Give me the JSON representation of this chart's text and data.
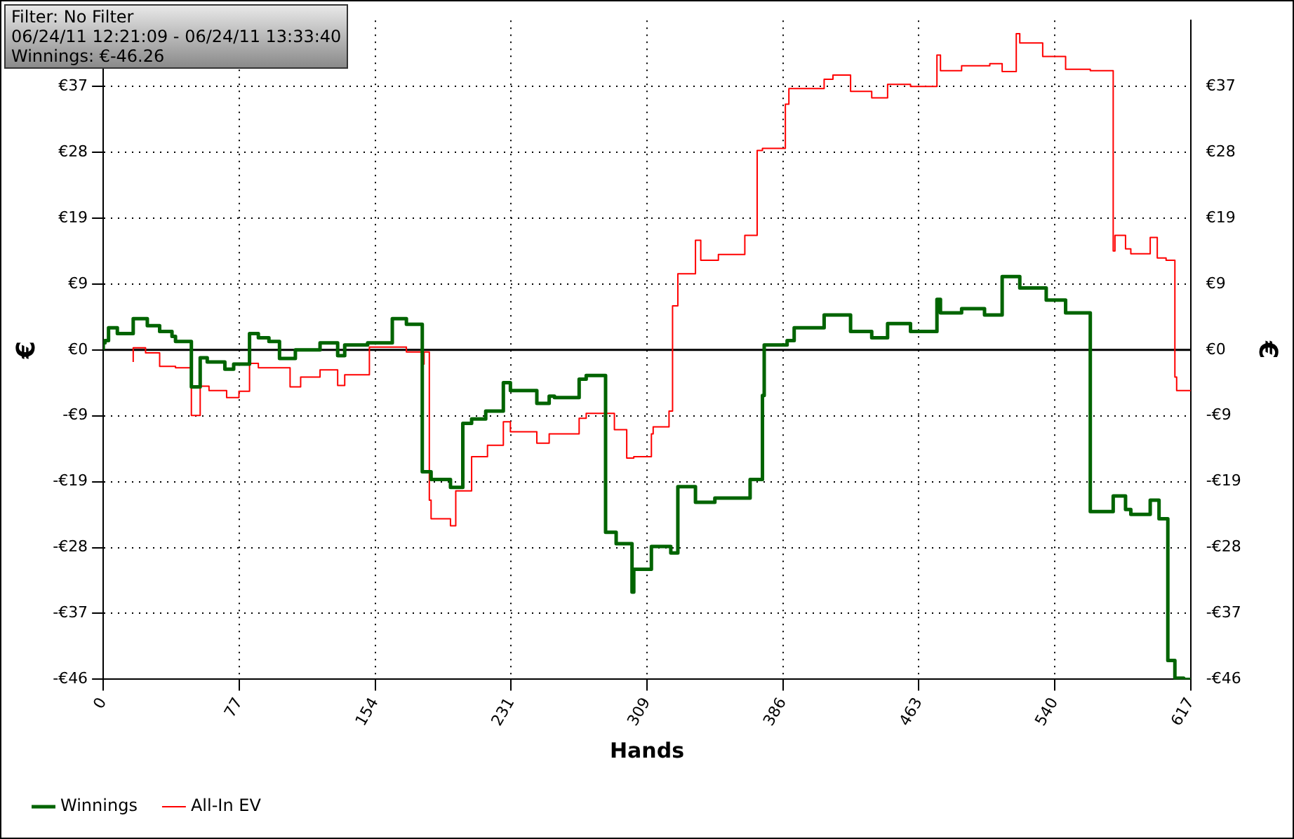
{
  "chart_data": {
    "type": "step",
    "xlabel": "Hands",
    "ylabel": "€",
    "y2label": "€",
    "annotations": [
      "Filter: No Filter",
      "06/24/11 12:21:09 - 06/24/11 13:33:40",
      "Winnings: €-46.26"
    ],
    "xlim": [
      0,
      617
    ],
    "xticks": [
      0,
      {
        "value": 77.125,
        "label": "77"
      },
      {
        "value": 154.25,
        "label": "154"
      },
      {
        "value": 231.375,
        "label": "231"
      },
      {
        "value": 308.5,
        "label": "309"
      },
      {
        "value": 385.625,
        "label": "386"
      },
      {
        "value": 462.75,
        "label": "463"
      },
      {
        "value": 539.875,
        "label": "540"
      },
      617
    ],
    "ylim": [
      -46.26,
      46.26
    ],
    "yticks": [
      {
        "value": -46.26,
        "label": "-€46"
      },
      {
        "value": -37,
        "label": "-€37"
      },
      {
        "value": -27.75,
        "label": "-€28"
      },
      {
        "value": -18.5,
        "label": "-€19"
      },
      {
        "value": -9.25,
        "label": "-€9"
      },
      {
        "value": 0,
        "label": "€0"
      },
      {
        "value": 9.25,
        "label": "€9"
      },
      {
        "value": 18.5,
        "label": "€19"
      },
      {
        "value": 27.75,
        "label": "€28"
      },
      {
        "value": 37,
        "label": "€37"
      }
    ],
    "y2lim": [
      -46.26,
      46.26
    ],
    "y2ticks": [
      {
        "value": -46.26,
        "label": "-€46"
      },
      {
        "value": -37,
        "label": "-€37"
      },
      {
        "value": -27.75,
        "label": "-€28"
      },
      {
        "value": -18.5,
        "label": "-€19"
      },
      {
        "value": -9.25,
        "label": "-€9"
      },
      {
        "value": 0,
        "label": "€0"
      },
      {
        "value": 9.25,
        "label": "€9"
      },
      {
        "value": 18.5,
        "label": "€19"
      },
      {
        "value": 27.75,
        "label": "€28"
      },
      {
        "value": 37,
        "label": "€37"
      }
    ],
    "grid": true,
    "legend": "bottom left",
    "ref_lines": [
      {
        "axis": "y",
        "value": 0,
        "color": "#000000"
      }
    ],
    "series": [
      {
        "name": "Winnings",
        "color": "#006400",
        "x": [
          0,
          1,
          3,
          8,
          17,
          25,
          32,
          39,
          41,
          50,
          55,
          59,
          69,
          74,
          83,
          88,
          94,
          100,
          109,
          123,
          133,
          137,
          150,
          164,
          172,
          181,
          186,
          197,
          204,
          209,
          217,
          227,
          231,
          246,
          253,
          256,
          270,
          274,
          285,
          291,
          300,
          301,
          311,
          322,
          326,
          336,
          347,
          367,
          374,
          375,
          388,
          392,
          409,
          424,
          436,
          445,
          458,
          473,
          475,
          487,
          500,
          510,
          520,
          535,
          546,
          560,
          573,
          580,
          583,
          594,
          599,
          604,
          608,
          613,
          617
        ],
        "values": [
          0,
          1.0,
          1.3,
          3.1,
          2.3,
          4.4,
          3.4,
          2.6,
          1.9,
          1.2,
          -5.2,
          -1.1,
          -1.7,
          -2.7,
          -2.0,
          2.3,
          1.7,
          1.2,
          -1.2,
          0,
          1.0,
          -0.8,
          0.7,
          1.0,
          4.4,
          3.6,
          -17.1,
          -18.2,
          -19.3,
          -10.3,
          -9.7,
          -8.6,
          -4.6,
          -5.7,
          -7.5,
          -6.5,
          -6.7,
          -4.1,
          -3.6,
          -25.6,
          -27.2,
          -34.0,
          -30.8,
          -27.6,
          -28.5,
          -19.2,
          -21.4,
          -20.8,
          -18.2,
          -6.4,
          0.7,
          1.3,
          3.1,
          4.9,
          2.6,
          1.7,
          3.7,
          2.6,
          7.1,
          5.2,
          5.8,
          4.9,
          10.3,
          8.7,
          7.0,
          5.2,
          -22.7,
          -20.5,
          -22.4,
          -23.1,
          -21.1,
          -23.7,
          -43.6,
          -46.1,
          -46.26
        ]
      },
      {
        "name": "All-In EV",
        "color": "#ff0000",
        "x": [
          17,
          24,
          32,
          41,
          50,
          55,
          60,
          70,
          77,
          83,
          88,
          106,
          112,
          123,
          133,
          137,
          151,
          172,
          181,
          182,
          185,
          186,
          197,
          200,
          209,
          218,
          227,
          231,
          246,
          253,
          270,
          274,
          290,
          297,
          301,
          311,
          312,
          321,
          323,
          326,
          336,
          339,
          349,
          364,
          371,
          374,
          387,
          389,
          409,
          414,
          424,
          436,
          445,
          458,
          473,
          475,
          487,
          503,
          510,
          518,
          520,
          533,
          546,
          560,
          573,
          574,
          580,
          583,
          594,
          598,
          603,
          608,
          609,
          613,
          617
        ],
        "values": [
          -1.7,
          0.3,
          -0.4,
          -2.3,
          -2.5,
          -9.2,
          -5.1,
          -5.7,
          -6.7,
          -5.8,
          -1.9,
          -2.5,
          -5.2,
          -3.8,
          -2.8,
          -5.0,
          -3.5,
          0.4,
          -0.3,
          -2.0,
          -0.3,
          -21.1,
          -23.7,
          -24.7,
          -19.8,
          -15.0,
          -13.4,
          -10.1,
          -11.5,
          -13.1,
          -11.8,
          -9.6,
          -8.9,
          -11.2,
          -15.2,
          -15.0,
          -11.8,
          -10.8,
          -8.6,
          6.2,
          10.7,
          15.4,
          12.6,
          13.4,
          16.1,
          28.0,
          28.3,
          34.5,
          36.7,
          38.0,
          38.6,
          36.3,
          35.4,
          37.3,
          37.0,
          41.4,
          39.2,
          39.9,
          40.2,
          39.1,
          44.4,
          43.1,
          41.2,
          39.4,
          39.2,
          13.9,
          16.1,
          14.2,
          13.5,
          15.8,
          12.9,
          12.6,
          -3.8,
          -5.7,
          -5.7
        ]
      }
    ]
  }
}
